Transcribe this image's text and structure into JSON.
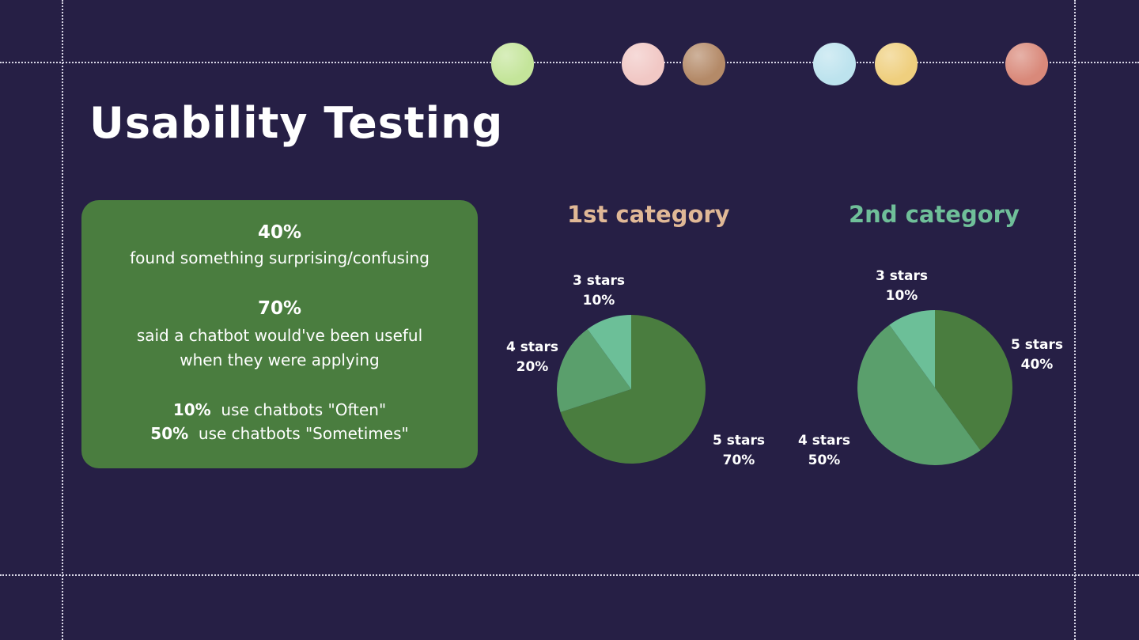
{
  "title": "Usability Testing",
  "decor_dots": [
    {
      "color": "#c4e59a",
      "name": "lime-dot"
    },
    {
      "color": "#f1c8c5",
      "name": "pink-dot"
    },
    {
      "color": "#b48a68",
      "name": "brown-dot"
    },
    {
      "color": "#bde3ee",
      "name": "light-blue-dot"
    },
    {
      "color": "#efcf7e",
      "name": "yellow-dot"
    },
    {
      "color": "#d9897a",
      "name": "salmon-dot"
    }
  ],
  "stats": {
    "stat1_value": "40%",
    "stat1_text": "found something surprising/confusing",
    "stat2_value": "70%",
    "stat2_text_line1": "said a chatbot would've been useful",
    "stat2_text_line2": "when they were applying",
    "usage1_value": "10%",
    "usage1_text": "use chatbots \"Often\"",
    "usage2_value": "50%",
    "usage2_text": "use chatbots \"Sometimes\""
  },
  "colors": {
    "background": "#261f45",
    "card": "#4a7d3f",
    "cat1_title": "#e0b896",
    "cat2_title": "#6fbf99",
    "five_stars": "#4a7d3f",
    "four_stars": "#5a9f6c",
    "three_stars": "#6cbf98"
  },
  "chart_data": [
    {
      "type": "pie",
      "title": "1st category",
      "categories": [
        "5 stars",
        "4 stars",
        "3 stars"
      ],
      "values": [
        70,
        20,
        10
      ],
      "unit": "%",
      "labels": [
        {
          "name": "5 stars",
          "value": "70%"
        },
        {
          "name": "4 stars",
          "value": "20%"
        },
        {
          "name": "3 stars",
          "value": "10%"
        }
      ]
    },
    {
      "type": "pie",
      "title": "2nd category",
      "categories": [
        "5 stars",
        "4 stars",
        "3 stars"
      ],
      "values": [
        40,
        50,
        10
      ],
      "unit": "%",
      "labels": [
        {
          "name": "5 stars",
          "value": "40%"
        },
        {
          "name": "4 stars",
          "value": "50%"
        },
        {
          "name": "3 stars",
          "value": "10%"
        }
      ]
    }
  ]
}
